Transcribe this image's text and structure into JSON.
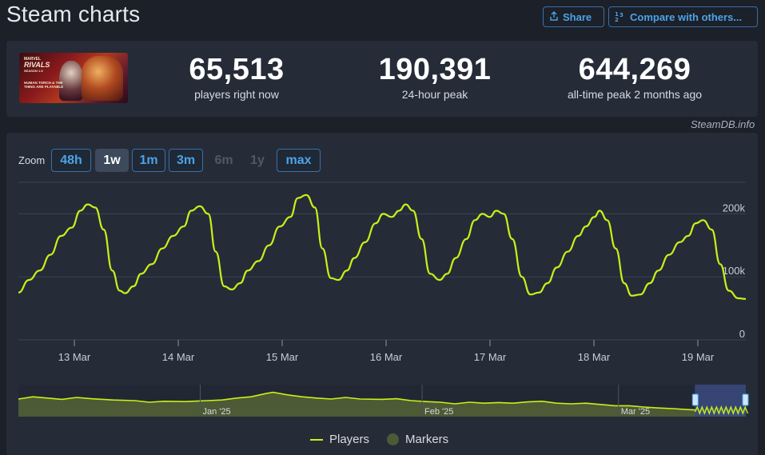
{
  "page": {
    "title": "Steam charts"
  },
  "toolbar": {
    "share_label": "Share",
    "compare_label": "Compare with others..."
  },
  "stats": {
    "current": {
      "value": "65,513",
      "label": "players right now"
    },
    "peak24": {
      "value": "190,391",
      "label": "24-hour peak"
    },
    "alltime": {
      "value": "644,269",
      "label": "all-time peak 2 months ago"
    }
  },
  "game": {
    "logo_text": "RIVALS",
    "logo_sub": "MARVEL",
    "season_text": "SEASON 1.5",
    "tagline": "HUMAN TORCH & THE THING ARE PLAYABLE"
  },
  "credit": "SteamDB.info",
  "zoom": {
    "label": "Zoom",
    "options": [
      {
        "label": "48h",
        "state": "active"
      },
      {
        "label": "1w",
        "state": "selected"
      },
      {
        "label": "1m",
        "state": "active"
      },
      {
        "label": "3m",
        "state": "active"
      },
      {
        "label": "6m",
        "state": "disabled"
      },
      {
        "label": "1y",
        "state": "disabled"
      },
      {
        "label": "max",
        "state": "active"
      }
    ]
  },
  "legend": {
    "players": "Players",
    "markers": "Markers"
  },
  "colors": {
    "line": "#c8f019",
    "gridline": "#3a4350",
    "navigator_fill": "#4c5a35",
    "navigator_select": "#3a4a80"
  },
  "chart_data": {
    "type": "line",
    "series": [
      {
        "name": "Players"
      }
    ],
    "x_ticks": [
      "13 Mar",
      "14 Mar",
      "15 Mar",
      "16 Mar",
      "17 Mar",
      "18 Mar",
      "19 Mar"
    ],
    "y_ticks": [
      "0",
      "100k",
      "200k"
    ],
    "ylim": [
      0,
      250000
    ],
    "grid": true,
    "points": [
      [
        0.0,
        75000
      ],
      [
        0.1,
        95000
      ],
      [
        0.2,
        110000
      ],
      [
        0.3,
        135000
      ],
      [
        0.4,
        165000
      ],
      [
        0.5,
        178000
      ],
      [
        0.58,
        205000
      ],
      [
        0.65,
        215000
      ],
      [
        0.72,
        210000
      ],
      [
        0.8,
        175000
      ],
      [
        0.88,
        110000
      ],
      [
        0.95,
        78000
      ],
      [
        1.0,
        74000
      ],
      [
        1.08,
        85000
      ],
      [
        1.15,
        105000
      ],
      [
        1.25,
        120000
      ],
      [
        1.35,
        145000
      ],
      [
        1.45,
        165000
      ],
      [
        1.55,
        180000
      ],
      [
        1.62,
        205000
      ],
      [
        1.7,
        212000
      ],
      [
        1.78,
        200000
      ],
      [
        1.85,
        140000
      ],
      [
        1.93,
        85000
      ],
      [
        2.0,
        80000
      ],
      [
        2.08,
        90000
      ],
      [
        2.15,
        110000
      ],
      [
        2.25,
        125000
      ],
      [
        2.35,
        150000
      ],
      [
        2.45,
        180000
      ],
      [
        2.55,
        195000
      ],
      [
        2.62,
        225000
      ],
      [
        2.7,
        230000
      ],
      [
        2.78,
        210000
      ],
      [
        2.85,
        145000
      ],
      [
        2.93,
        98000
      ],
      [
        3.0,
        95000
      ],
      [
        3.08,
        110000
      ],
      [
        3.15,
        130000
      ],
      [
        3.25,
        155000
      ],
      [
        3.35,
        185000
      ],
      [
        3.42,
        200000
      ],
      [
        3.5,
        195000
      ],
      [
        3.57,
        205000
      ],
      [
        3.63,
        215000
      ],
      [
        3.7,
        205000
      ],
      [
        3.78,
        160000
      ],
      [
        3.86,
        105000
      ],
      [
        3.95,
        95000
      ],
      [
        4.02,
        105000
      ],
      [
        4.1,
        130000
      ],
      [
        4.2,
        160000
      ],
      [
        4.28,
        190000
      ],
      [
        4.35,
        200000
      ],
      [
        4.42,
        195000
      ],
      [
        4.48,
        205000
      ],
      [
        4.55,
        200000
      ],
      [
        4.63,
        160000
      ],
      [
        4.72,
        100000
      ],
      [
        4.8,
        72000
      ],
      [
        4.88,
        75000
      ],
      [
        4.96,
        90000
      ],
      [
        5.05,
        115000
      ],
      [
        5.15,
        140000
      ],
      [
        5.25,
        165000
      ],
      [
        5.32,
        180000
      ],
      [
        5.4,
        195000
      ],
      [
        5.45,
        205000
      ],
      [
        5.52,
        190000
      ],
      [
        5.6,
        145000
      ],
      [
        5.68,
        90000
      ],
      [
        5.75,
        70000
      ],
      [
        5.83,
        72000
      ],
      [
        5.92,
        90000
      ],
      [
        6.0,
        110000
      ],
      [
        6.1,
        135000
      ],
      [
        6.2,
        155000
      ],
      [
        6.28,
        165000
      ],
      [
        6.35,
        185000
      ],
      [
        6.42,
        190000
      ],
      [
        6.5,
        175000
      ],
      [
        6.58,
        120000
      ],
      [
        6.66,
        78000
      ],
      [
        6.75,
        66000
      ],
      [
        6.82,
        65000
      ]
    ],
    "navigator": {
      "ticks": [
        "Jan '25",
        "Feb '25",
        "Mar '25"
      ],
      "points": [
        [
          0.0,
          0.55
        ],
        [
          0.02,
          0.62
        ],
        [
          0.04,
          0.58
        ],
        [
          0.06,
          0.54
        ],
        [
          0.08,
          0.6
        ],
        [
          0.1,
          0.56
        ],
        [
          0.13,
          0.52
        ],
        [
          0.16,
          0.5
        ],
        [
          0.18,
          0.45
        ],
        [
          0.2,
          0.48
        ],
        [
          0.23,
          0.47
        ],
        [
          0.26,
          0.5
        ],
        [
          0.28,
          0.52
        ],
        [
          0.3,
          0.58
        ],
        [
          0.32,
          0.62
        ],
        [
          0.34,
          0.72
        ],
        [
          0.35,
          0.76
        ],
        [
          0.37,
          0.68
        ],
        [
          0.39,
          0.62
        ],
        [
          0.41,
          0.58
        ],
        [
          0.43,
          0.55
        ],
        [
          0.45,
          0.6
        ],
        [
          0.47,
          0.55
        ],
        [
          0.5,
          0.54
        ],
        [
          0.52,
          0.56
        ],
        [
          0.54,
          0.5
        ],
        [
          0.56,
          0.47
        ],
        [
          0.58,
          0.45
        ],
        [
          0.6,
          0.4
        ],
        [
          0.62,
          0.45
        ],
        [
          0.64,
          0.42
        ],
        [
          0.66,
          0.44
        ],
        [
          0.68,
          0.42
        ],
        [
          0.7,
          0.46
        ],
        [
          0.72,
          0.48
        ],
        [
          0.74,
          0.42
        ],
        [
          0.76,
          0.4
        ],
        [
          0.78,
          0.42
        ],
        [
          0.8,
          0.38
        ],
        [
          0.82,
          0.34
        ],
        [
          0.84,
          0.34
        ],
        [
          0.86,
          0.3
        ],
        [
          0.88,
          0.27
        ],
        [
          0.9,
          0.25
        ],
        [
          0.92,
          0.22
        ],
        [
          0.94,
          0.2
        ],
        [
          0.96,
          0.25
        ],
        [
          0.98,
          0.2
        ],
        [
          1.0,
          0.22
        ]
      ],
      "selection": [
        0.93,
        1.0
      ]
    }
  }
}
